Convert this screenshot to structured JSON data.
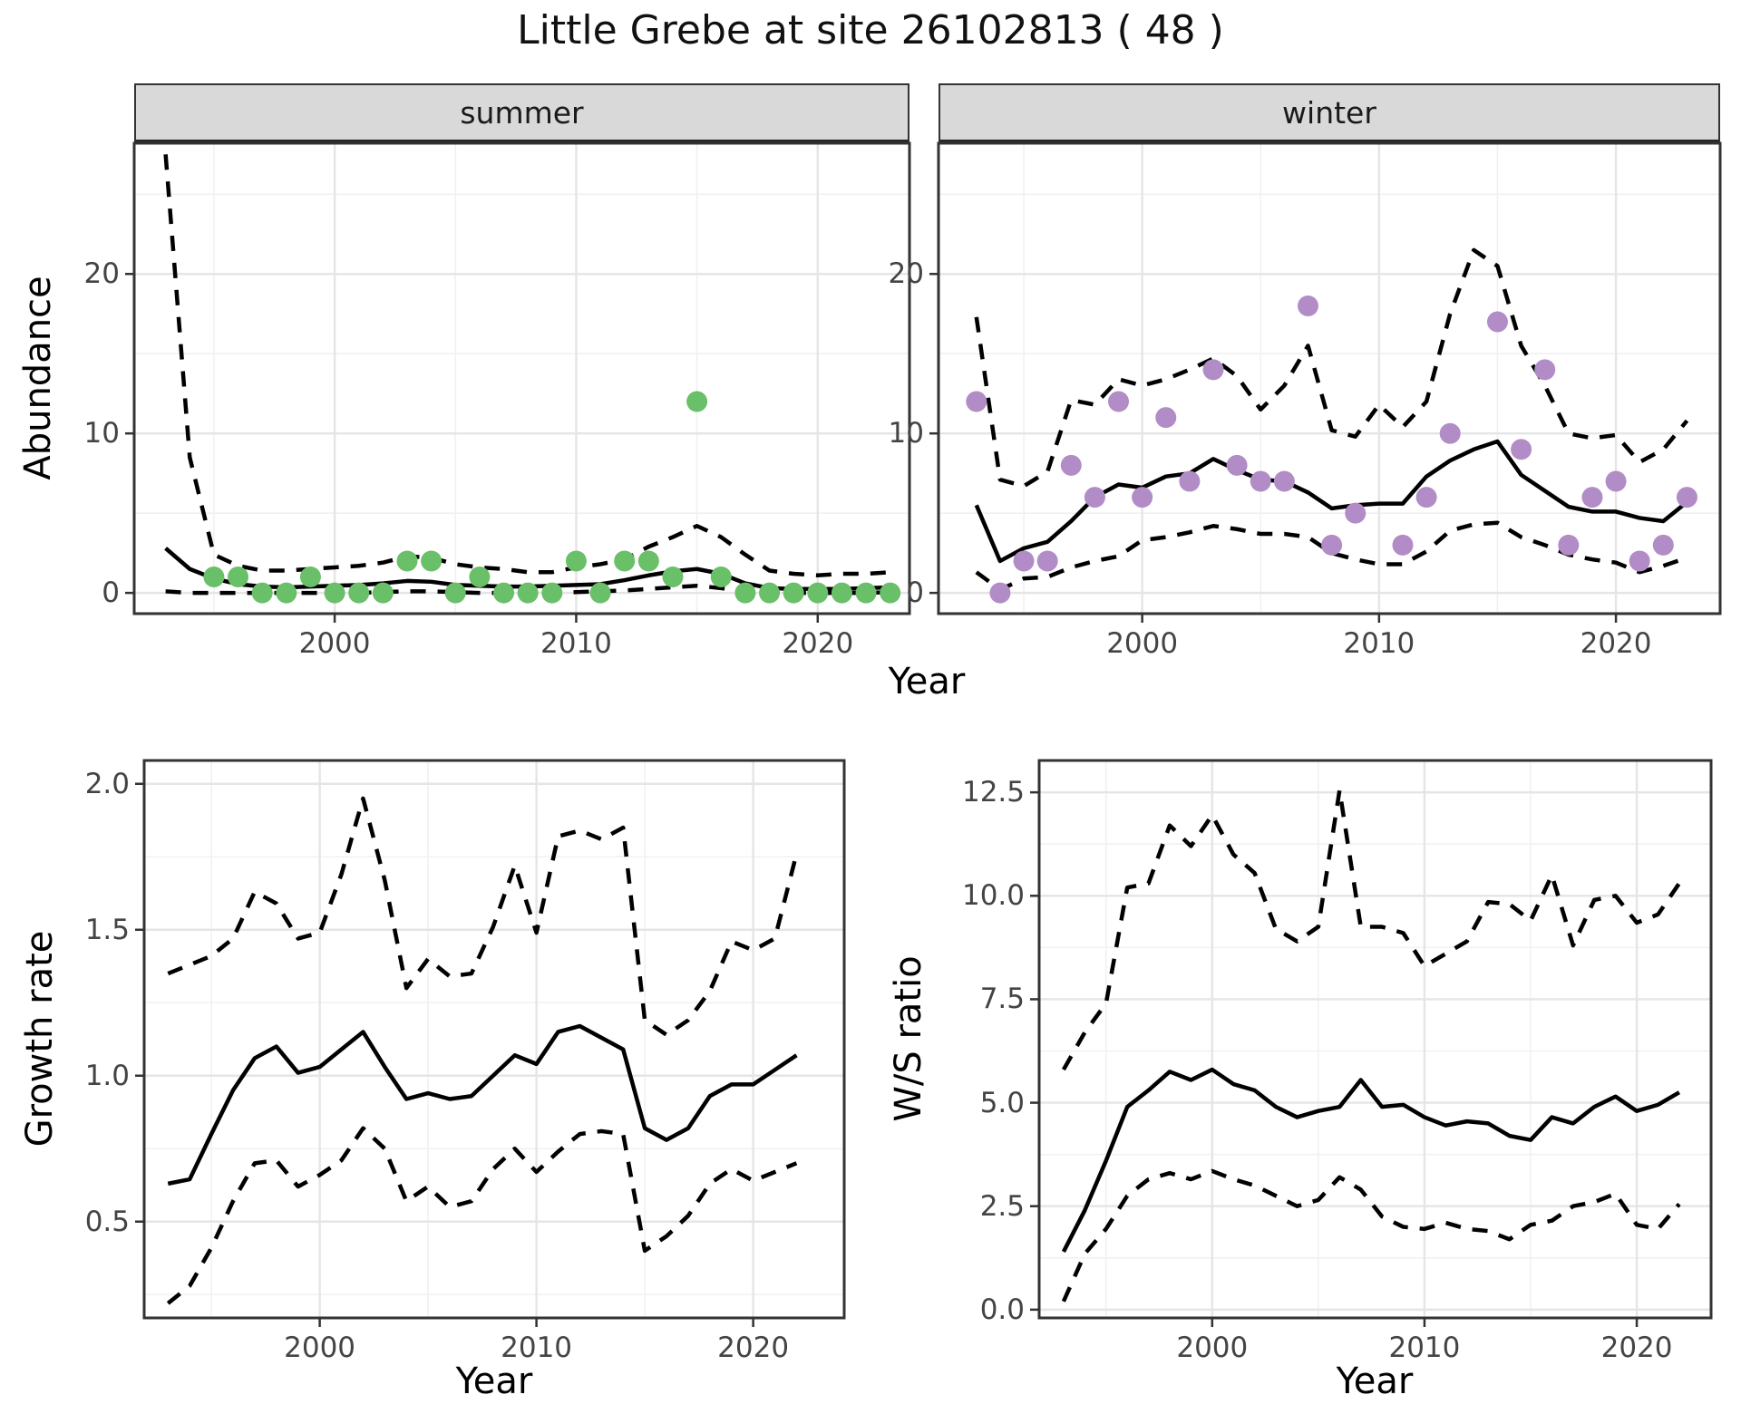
{
  "title": "Little Grebe at site 26102813 ( 48 )",
  "axis_titles": {
    "top_x": "Year",
    "top_y": "Abundance",
    "growth_y": "Growth rate",
    "growth_x": "Year",
    "ws_y": "W/S ratio",
    "ws_x": "Year"
  },
  "facets": {
    "summer": "summer",
    "winter": "winter"
  },
  "colors": {
    "summer_point": "#6abf69",
    "winter_point": "#b28cc6",
    "line": "#000000",
    "strip_bg": "#d9d9d9",
    "grid_major": "#e5e5e5",
    "grid_minor": "#f1f1f1",
    "panel_border": "#333333",
    "tick_text": "#444444"
  },
  "chart_data": [
    {
      "id": "abundance_summer",
      "type": "line+scatter",
      "facet_label": "summer",
      "xlabel": "Year",
      "ylabel": "Abundance",
      "xlim": [
        1991.7,
        2023.8
      ],
      "ylim": [
        -1.3,
        28.2
      ],
      "x_ticks": [
        2000,
        2010,
        2020
      ],
      "y_ticks": [
        0,
        10,
        20
      ],
      "y_tick_labels": [
        "0",
        "10",
        "20"
      ],
      "point_color_key": "summer_point",
      "x": [
        1993,
        1994,
        1995,
        1996,
        1997,
        1998,
        1999,
        2000,
        2001,
        2002,
        2003,
        2004,
        2005,
        2006,
        2007,
        2008,
        2009,
        2010,
        2011,
        2012,
        2013,
        2014,
        2015,
        2016,
        2017,
        2018,
        2019,
        2020,
        2021,
        2022,
        2023
      ],
      "observed": [
        null,
        null,
        1,
        1,
        0,
        0,
        1,
        0,
        0,
        0,
        2,
        2,
        0,
        1,
        0,
        0,
        0,
        2,
        0,
        2,
        2,
        1,
        12,
        1,
        0,
        0,
        0,
        0,
        0,
        0,
        0
      ],
      "fit": [
        2.8,
        1.5,
        0.9,
        0.55,
        0.4,
        0.35,
        0.4,
        0.45,
        0.5,
        0.6,
        0.75,
        0.7,
        0.5,
        0.45,
        0.4,
        0.4,
        0.45,
        0.5,
        0.55,
        0.8,
        1.1,
        1.35,
        1.5,
        1.2,
        0.6,
        0.3,
        0.25,
        0.25,
        0.25,
        0.3,
        0.35
      ],
      "ci_upper": [
        27.5,
        8.5,
        2.4,
        1.7,
        1.4,
        1.4,
        1.5,
        1.6,
        1.7,
        1.9,
        2.3,
        2.2,
        1.8,
        1.6,
        1.5,
        1.3,
        1.3,
        1.6,
        1.8,
        2.1,
        2.9,
        3.5,
        4.2,
        3.5,
        2.4,
        1.4,
        1.2,
        1.1,
        1.2,
        1.2,
        1.3
      ],
      "ci_lower": [
        0.1,
        0,
        0,
        0,
        0,
        0,
        0,
        0,
        0,
        0.05,
        0.1,
        0.1,
        0.05,
        0,
        0,
        0,
        0,
        0.05,
        0.1,
        0.15,
        0.25,
        0.35,
        0.45,
        0.3,
        0.1,
        0.05,
        0,
        0,
        0,
        0,
        0.05
      ]
    },
    {
      "id": "abundance_winter",
      "type": "line+scatter",
      "facet_label": "winter",
      "xlabel": "Year",
      "ylabel": "Abundance",
      "xlim": [
        1991.4,
        2024.4
      ],
      "ylim": [
        -1.3,
        28.2
      ],
      "x_ticks": [
        2000,
        2010,
        2020
      ],
      "y_ticks": [
        0,
        10,
        20
      ],
      "y_tick_labels": [
        "0",
        "10",
        "20"
      ],
      "point_color_key": "winter_point",
      "x": [
        1993,
        1994,
        1995,
        1996,
        1997,
        1998,
        1999,
        2000,
        2001,
        2002,
        2003,
        2004,
        2005,
        2006,
        2007,
        2008,
        2009,
        2010,
        2011,
        2012,
        2013,
        2014,
        2015,
        2016,
        2017,
        2018,
        2019,
        2020,
        2021,
        2022,
        2023
      ],
      "observed": [
        12,
        0,
        2,
        2,
        8,
        6,
        12,
        6,
        11,
        7,
        14,
        8,
        7,
        7,
        18,
        3,
        5,
        null,
        3,
        6,
        10,
        null,
        17,
        9,
        14,
        3,
        6,
        7,
        2,
        3,
        6
      ],
      "fit": [
        5.5,
        2.0,
        2.8,
        3.2,
        4.5,
        6.0,
        6.8,
        6.6,
        7.3,
        7.5,
        8.4,
        7.7,
        7.1,
        7.0,
        6.3,
        5.3,
        5.5,
        5.6,
        5.6,
        7.3,
        8.3,
        9.0,
        9.5,
        7.4,
        6.4,
        5.4,
        5.1,
        5.1,
        4.7,
        4.5,
        5.7
      ],
      "ci_upper": [
        17.3,
        7.1,
        6.7,
        7.6,
        12.1,
        11.8,
        13.4,
        13.0,
        13.4,
        14.0,
        14.7,
        13.6,
        11.5,
        13.0,
        15.5,
        10.2,
        9.8,
        11.8,
        10.4,
        12.0,
        17.5,
        21.5,
        20.5,
        15.5,
        13.0,
        10.0,
        9.7,
        9.9,
        8.2,
        9.0,
        10.8
      ],
      "ci_lower": [
        1.3,
        0.2,
        0.9,
        1.0,
        1.6,
        2.0,
        2.3,
        3.3,
        3.5,
        3.8,
        4.2,
        4.0,
        3.7,
        3.7,
        3.5,
        2.5,
        2.1,
        1.8,
        1.8,
        2.6,
        3.9,
        4.3,
        4.4,
        3.5,
        3.0,
        2.4,
        2.1,
        1.9,
        1.3,
        1.7,
        2.2
      ]
    },
    {
      "id": "growth_rate",
      "type": "line",
      "xlabel": "Year",
      "ylabel": "Growth rate",
      "xlim": [
        1991.9,
        2024.2
      ],
      "ylim": [
        0.17,
        2.08
      ],
      "x_ticks": [
        2000,
        2010,
        2020
      ],
      "y_ticks": [
        0.5,
        1.0,
        1.5,
        2.0
      ],
      "y_tick_labels": [
        "0.5",
        "1.0",
        "1.5",
        "2.0"
      ],
      "x": [
        1993,
        1994,
        1995,
        1996,
        1997,
        1998,
        1999,
        2000,
        2001,
        2002,
        2003,
        2004,
        2005,
        2006,
        2007,
        2008,
        2009,
        2010,
        2011,
        2012,
        2013,
        2014,
        2015,
        2016,
        2017,
        2018,
        2019,
        2020,
        2021,
        2022
      ],
      "fit": [
        0.63,
        0.645,
        0.8,
        0.95,
        1.06,
        1.1,
        1.01,
        1.03,
        1.09,
        1.15,
        1.03,
        0.92,
        0.94,
        0.92,
        0.93,
        1.0,
        1.07,
        1.04,
        1.15,
        1.17,
        1.13,
        1.09,
        0.82,
        0.78,
        0.82,
        0.93,
        0.97,
        0.97,
        1.02,
        1.07
      ],
      "ci_upper": [
        1.35,
        1.38,
        1.41,
        1.47,
        1.63,
        1.59,
        1.47,
        1.49,
        1.69,
        1.95,
        1.67,
        1.3,
        1.4,
        1.34,
        1.35,
        1.51,
        1.72,
        1.49,
        1.82,
        1.84,
        1.81,
        1.85,
        1.19,
        1.14,
        1.19,
        1.29,
        1.46,
        1.43,
        1.47,
        1.76
      ],
      "ci_lower": [
        0.22,
        0.28,
        0.41,
        0.57,
        0.7,
        0.71,
        0.62,
        0.66,
        0.71,
        0.82,
        0.75,
        0.57,
        0.62,
        0.55,
        0.57,
        0.68,
        0.75,
        0.67,
        0.74,
        0.8,
        0.81,
        0.8,
        0.4,
        0.45,
        0.52,
        0.63,
        0.68,
        0.64,
        0.67,
        0.7
      ]
    },
    {
      "id": "ws_ratio",
      "type": "line",
      "xlabel": "Year",
      "ylabel": "W/S ratio",
      "xlim": [
        1991.85,
        2023.5
      ],
      "ylim": [
        -0.2,
        13.27
      ],
      "x_ticks": [
        2000,
        2010,
        2020
      ],
      "y_ticks": [
        0,
        2.5,
        5.0,
        7.5,
        10.0,
        12.5
      ],
      "y_tick_labels": [
        "0.0",
        "2.5",
        "5.0",
        "7.5",
        "10.0",
        "12.5"
      ],
      "x": [
        1993,
        1994,
        1995,
        1996,
        1997,
        1998,
        1999,
        2000,
        2001,
        2002,
        2003,
        2004,
        2005,
        2006,
        2007,
        2008,
        2009,
        2010,
        2011,
        2012,
        2013,
        2014,
        2015,
        2016,
        2017,
        2018,
        2019,
        2020,
        2021,
        2022
      ],
      "fit": [
        1.4,
        2.4,
        3.6,
        4.9,
        5.3,
        5.75,
        5.55,
        5.8,
        5.45,
        5.3,
        4.9,
        4.65,
        4.8,
        4.9,
        5.55,
        4.9,
        4.95,
        4.65,
        4.45,
        4.55,
        4.5,
        4.2,
        4.1,
        4.65,
        4.5,
        4.9,
        5.15,
        4.8,
        4.95,
        5.25
      ],
      "ci_upper": [
        5.8,
        6.7,
        7.4,
        10.2,
        10.3,
        11.7,
        11.2,
        11.95,
        11.0,
        10.55,
        9.2,
        8.9,
        9.25,
        12.55,
        9.25,
        9.25,
        9.1,
        8.3,
        8.6,
        8.9,
        9.85,
        9.8,
        9.4,
        10.5,
        8.8,
        9.9,
        10.0,
        9.35,
        9.55,
        10.3
      ],
      "ci_lower": [
        0.2,
        1.35,
        1.95,
        2.75,
        3.15,
        3.3,
        3.15,
        3.35,
        3.15,
        3.0,
        2.75,
        2.5,
        2.65,
        3.2,
        2.9,
        2.25,
        2.0,
        1.95,
        2.1,
        1.95,
        1.9,
        1.7,
        2.05,
        2.15,
        2.5,
        2.6,
        2.8,
        2.05,
        1.95,
        2.55
      ]
    }
  ]
}
